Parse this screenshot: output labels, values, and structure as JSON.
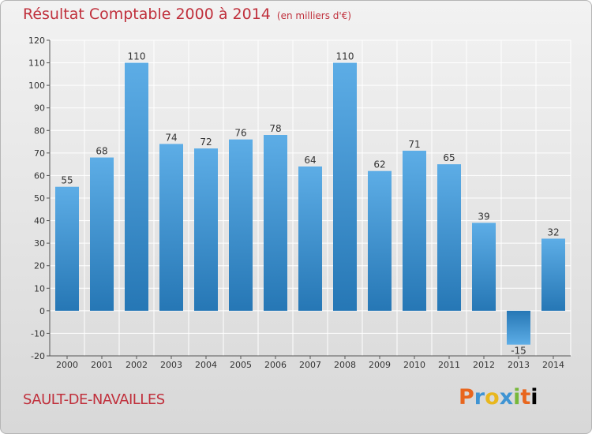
{
  "chart_data": {
    "type": "bar",
    "title": "Résultat Comptable 2000 à 2014",
    "subtitle": "(en milliers d'€)",
    "categories": [
      "2000",
      "2001",
      "2002",
      "2003",
      "2004",
      "2005",
      "2006",
      "2007",
      "2008",
      "2009",
      "2010",
      "2011",
      "2012",
      "2013",
      "2014"
    ],
    "values": [
      55,
      68,
      110,
      74,
      72,
      76,
      78,
      64,
      110,
      62,
      71,
      65,
      39,
      -15,
      32
    ],
    "value_labels": [
      "55",
      "68",
      "110",
      "74",
      "72",
      "76",
      "78",
      "64",
      "110",
      "62",
      "71",
      "65",
      "39",
      "-15",
      "32"
    ],
    "ylim": [
      -20,
      120
    ],
    "yticks": [
      -20,
      -10,
      0,
      10,
      20,
      30,
      40,
      50,
      60,
      70,
      80,
      90,
      100,
      110,
      120
    ],
    "grid": true,
    "colors": {
      "bar_top": "#5dade6",
      "bar_bottom": "#2677b5",
      "grid": "#ffffff",
      "axis": "#555555"
    }
  },
  "footer": {
    "commune": "SAULT-DE-NAVAILLES",
    "logo_letters": [
      "P",
      "r",
      "o",
      "x",
      "i",
      "t",
      "i"
    ]
  }
}
